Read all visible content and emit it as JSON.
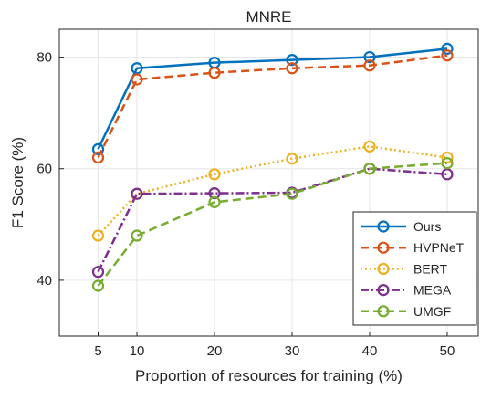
{
  "chart_data": {
    "type": "line",
    "title": "MNRE",
    "xlabel": "Proportion of resources for training (%)",
    "ylabel": "F1 Score (%)",
    "x": [
      5,
      10,
      20,
      30,
      40,
      50
    ],
    "xlim": [
      0,
      54
    ],
    "ylim": [
      30,
      85
    ],
    "xticks": [
      5,
      10,
      20,
      30,
      40,
      50
    ],
    "yticks": [
      40,
      60,
      80
    ],
    "grid": true,
    "legend_position": "bottom-right",
    "series": [
      {
        "name": "Ours",
        "values": [
          63.5,
          78.0,
          79.0,
          79.5,
          80.0,
          81.5
        ],
        "color": "#0072BD",
        "dash": "solid"
      },
      {
        "name": "HVPNeT",
        "values": [
          62.0,
          76.0,
          77.2,
          78.0,
          78.5,
          80.3
        ],
        "color": "#D95319",
        "dash": "dashed"
      },
      {
        "name": "BERT",
        "values": [
          48.0,
          55.5,
          59.0,
          61.8,
          64.0,
          62.0
        ],
        "color": "#EDB120",
        "dash": "dotted"
      },
      {
        "name": "MEGA",
        "values": [
          41.5,
          55.5,
          55.6,
          55.7,
          60.0,
          59.0
        ],
        "color": "#7E2F8E",
        "dash": "dashdot"
      },
      {
        "name": "UMGF",
        "values": [
          39.0,
          48.0,
          54.0,
          55.5,
          60.0,
          61.0
        ],
        "color": "#77AC30",
        "dash": "dashed"
      }
    ]
  }
}
